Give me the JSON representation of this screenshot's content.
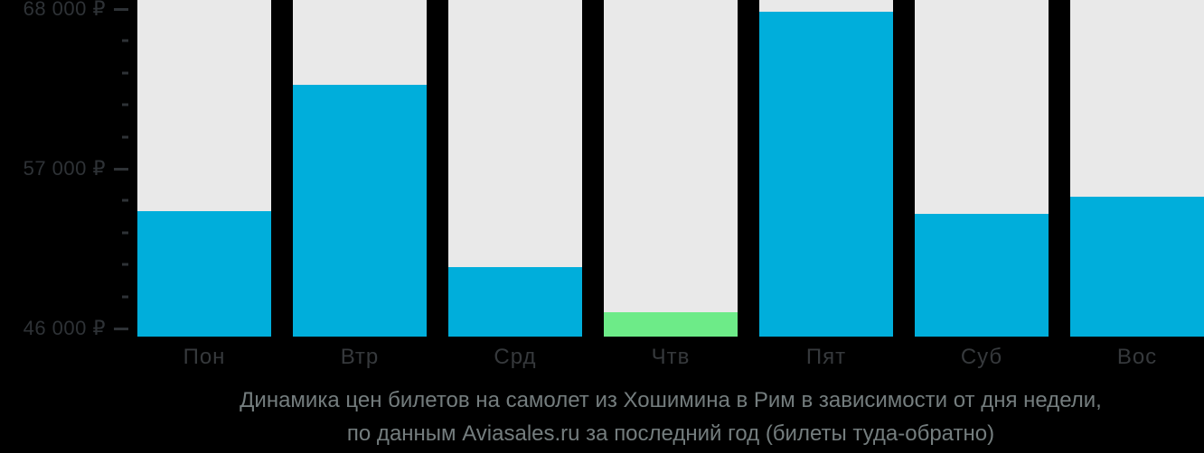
{
  "colors": {
    "background": "#000000",
    "column": "#e9e9e9",
    "bar": "#00aedb",
    "bar_highlight": "#6deb88",
    "axis_text": "#2e3236",
    "day_text": "#36393c",
    "title_text": "#747d7e"
  },
  "chart_data": {
    "type": "bar",
    "categories": [
      "Пон",
      "Втр",
      "Срд",
      "Чтв",
      "Пят",
      "Суб",
      "Вос"
    ],
    "values": [
      54100,
      62800,
      50200,
      47100,
      67800,
      53900,
      55100
    ],
    "highlighted_category": "Чтв",
    "highlight_index": 3,
    "yticks": [
      {
        "value": 46000,
        "label": "46 000 ₽"
      },
      {
        "value": 57000,
        "label": "57 000 ₽"
      },
      {
        "value": 68000,
        "label": "68 000 ₽"
      }
    ],
    "minor_tick_step": 2200,
    "ylim": [
      45440,
      68620
    ],
    "grid": false,
    "legend": false,
    "title": "Динамика цен билетов на самолет из Хошимина в Рим в зависимости от дня недели,",
    "subtitle": "по данным Aviasales.ru за последний год (билеты туда-обратно)"
  }
}
